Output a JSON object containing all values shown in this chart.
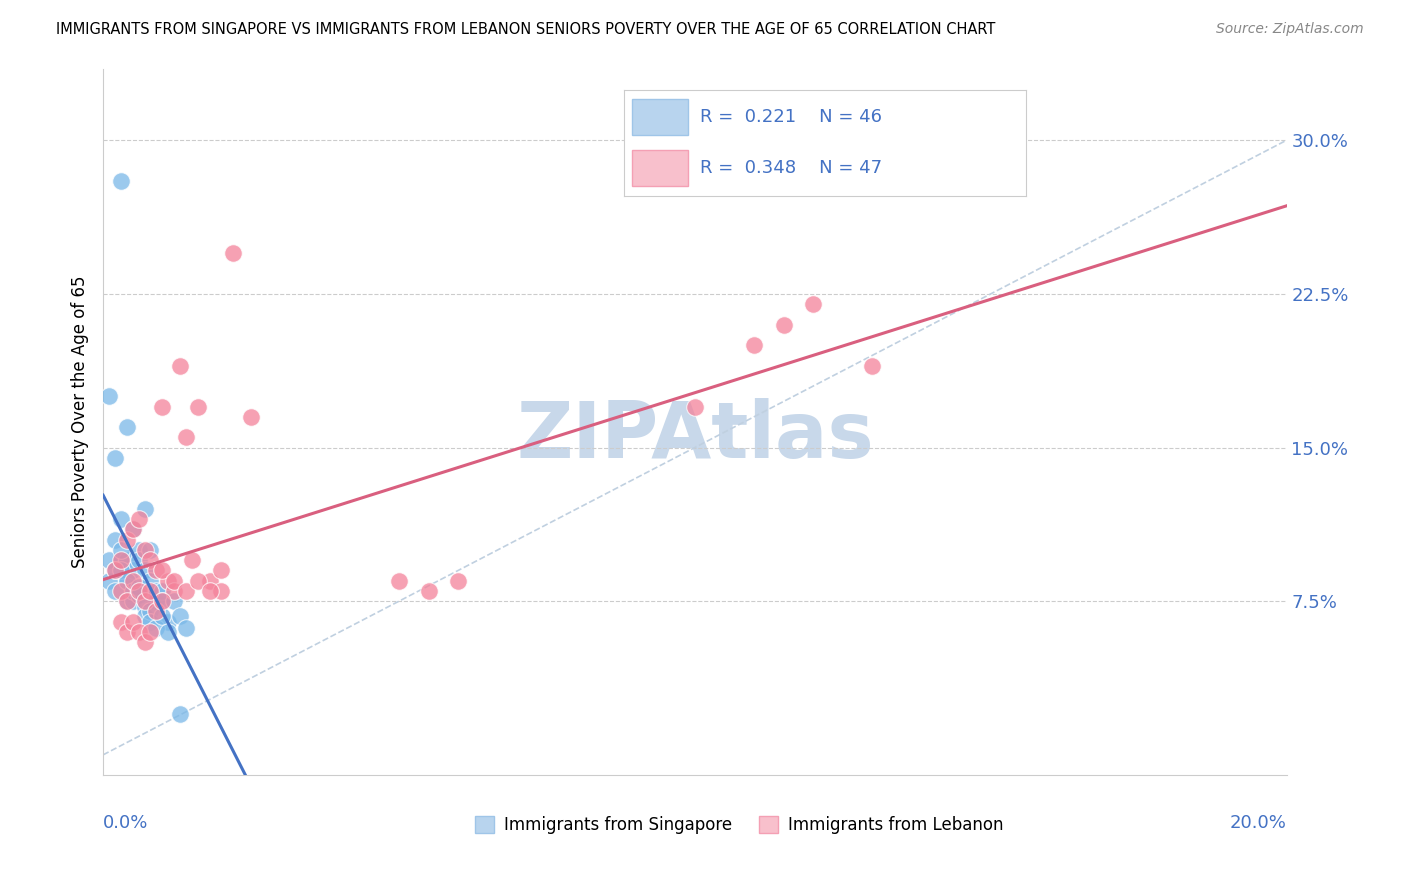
{
  "title": "IMMIGRANTS FROM SINGAPORE VS IMMIGRANTS FROM LEBANON SENIORS POVERTY OVER THE AGE OF 65 CORRELATION CHART",
  "source": "Source: ZipAtlas.com",
  "ylabel": "Seniors Poverty Over the Age of 65",
  "ytick_labels": [
    "7.5%",
    "15.0%",
    "22.5%",
    "30.0%"
  ],
  "ytick_values": [
    0.075,
    0.15,
    0.225,
    0.3
  ],
  "xlim": [
    0.0,
    0.2
  ],
  "ylim": [
    -0.01,
    0.335
  ],
  "scatter_color_1": "#7ab8e8",
  "scatter_color_2": "#f4829a",
  "line_color_1": "#4472c4",
  "line_color_2": "#d95f7f",
  "diag_line_color": "#c0d0e0",
  "watermark": "ZIPAtlas",
  "watermark_color": "#c8d8ea",
  "legend_text_color": "#4472c4",
  "r1": 0.221,
  "n1": 46,
  "r2": 0.348,
  "n2": 47,
  "sg_x": [
    0.001,
    0.002,
    0.002,
    0.003,
    0.003,
    0.003,
    0.004,
    0.004,
    0.004,
    0.005,
    0.005,
    0.005,
    0.006,
    0.006,
    0.007,
    0.007,
    0.008,
    0.008,
    0.009,
    0.009,
    0.01,
    0.01,
    0.011,
    0.012,
    0.013,
    0.014,
    0.001,
    0.001,
    0.002,
    0.002,
    0.003,
    0.003,
    0.004,
    0.004,
    0.005,
    0.005,
    0.006,
    0.006,
    0.007,
    0.007,
    0.008,
    0.008,
    0.009,
    0.01,
    0.011,
    0.013
  ],
  "sg_y": [
    0.175,
    0.145,
    0.105,
    0.28,
    0.095,
    0.115,
    0.16,
    0.095,
    0.085,
    0.11,
    0.09,
    0.08,
    0.1,
    0.095,
    0.12,
    0.09,
    0.1,
    0.085,
    0.08,
    0.075,
    0.08,
    0.075,
    0.065,
    0.075,
    0.068,
    0.062,
    0.095,
    0.085,
    0.09,
    0.08,
    0.1,
    0.09,
    0.075,
    0.085,
    0.075,
    0.08,
    0.082,
    0.078,
    0.072,
    0.068,
    0.07,
    0.065,
    0.062,
    0.068,
    0.06,
    0.02
  ],
  "lb_x": [
    0.002,
    0.003,
    0.004,
    0.005,
    0.006,
    0.007,
    0.008,
    0.009,
    0.01,
    0.011,
    0.012,
    0.013,
    0.014,
    0.015,
    0.016,
    0.018,
    0.02,
    0.022,
    0.025,
    0.003,
    0.004,
    0.005,
    0.006,
    0.007,
    0.008,
    0.009,
    0.01,
    0.05,
    0.055,
    0.06,
    0.1,
    0.11,
    0.115,
    0.12,
    0.13,
    0.003,
    0.004,
    0.005,
    0.006,
    0.007,
    0.008,
    0.01,
    0.012,
    0.014,
    0.016,
    0.018,
    0.02
  ],
  "lb_y": [
    0.09,
    0.095,
    0.105,
    0.11,
    0.115,
    0.1,
    0.095,
    0.09,
    0.17,
    0.085,
    0.08,
    0.19,
    0.155,
    0.095,
    0.17,
    0.085,
    0.08,
    0.245,
    0.165,
    0.08,
    0.075,
    0.085,
    0.08,
    0.075,
    0.08,
    0.07,
    0.09,
    0.085,
    0.08,
    0.085,
    0.17,
    0.2,
    0.21,
    0.22,
    0.19,
    0.065,
    0.06,
    0.065,
    0.06,
    0.055,
    0.06,
    0.075,
    0.085,
    0.08,
    0.085,
    0.08,
    0.09
  ],
  "bottom_legend_label_1": "Immigrants from Singapore",
  "bottom_legend_label_2": "Immigrants from Lebanon"
}
